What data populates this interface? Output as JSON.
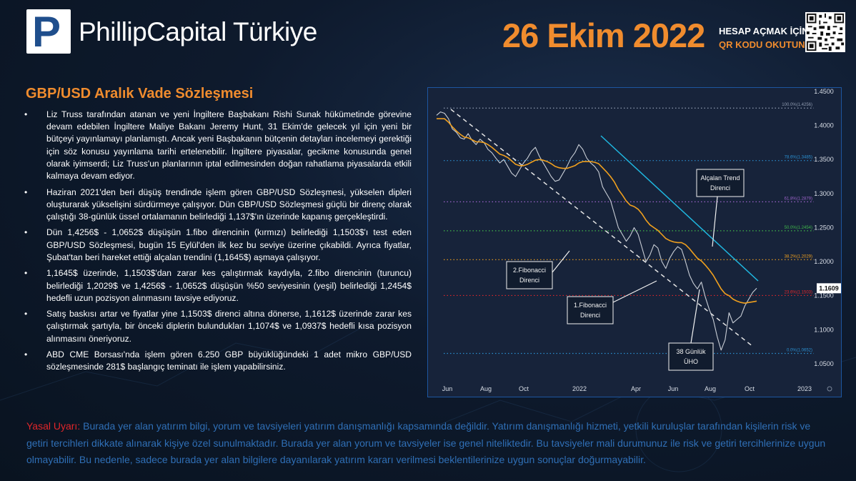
{
  "header": {
    "logo_letter": "P",
    "brand": "PhillipCapital Türkiye",
    "date": "26 Ekim 2022",
    "qr_line1": "HESAP AÇMAK İÇİN",
    "qr_line2": "QR KODU OKUTUNUZ"
  },
  "content": {
    "title": "GBP/USD Aralık Vade Sözleşmesi",
    "bullets": [
      "Liz Truss tarafından atanan ve yeni İngiltere Başbakanı Rishi Sunak hükümetinde görevine devam edebilen İngiltere Maliye Bakanı Jeremy Hunt, 31 Ekim'de gelecek yıl için yeni bir bütçeyi yayınlamayı planlamıştı. Ancak yeni Başbakanın bütçenin detayları incelemeyi gerektiği için söz konusu yayınlama tarihi ertelenebilir. İngiltere piyasalar, gecikme konusunda genel olarak iyimserdi; Liz Truss'un planlarının iptal edilmesinden doğan rahatlama piyasalarda etkili kalmaya devam ediyor.",
      "Haziran 2021'den beri düşüş trendinde işlem gören GBP/USD Sözleşmesi, yükselen dipleri oluşturarak yükselişini sürdürmeye çalışıyor. Dün GBP/USD Sözleşmesi güçlü bir direnç olarak çalıştığı 38-günlük üssel ortalamanın belirlediği 1,137$'ın üzerinde kapanış gerçekleştirdi.",
      "Dün 1,4256$ - 1,0652$ düşüşün 1.fibo direncinin (kırmızı) belirlediği 1,1503$'ı test eden GBP/USD Sözleşmesi,  bugün 15 Eylül'den ilk kez bu seviye üzerine çıkabildi. Ayrıca fiyatlar, Şubat'tan beri hareket ettiği alçalan trendini (1,1645$) aşmaya çalışıyor.",
      "1,1645$ üzerinde, 1,1503$'dan zarar kes çalıştırmak kaydıyla, 2.fibo direncinin (turuncu) belirlediği 1,2029$ ve 1,4256$ - 1,0652$ düşüşün %50 seviyesinin (yeşil) belirlediği 1,2454$  hedefli uzun pozisyon alınmasını tavsiye ediyoruz.",
      "Satış baskısı artar ve fiyatlar yine 1,1503$ direnci altına dönerse, 1,1612$ üzerinde zarar kes çalıştırmak şartıyla,  bir önceki diplerin bulundukları 1,1074$ ve 1,0937$ hedefli kısa pozisyon alınmasını öneriyoruz.",
      "ABD CME Borsası'nda işlem gören 6.250 GBP büyüklüğündeki 1 adet mikro GBP/USD sözleşmesinde 281$ başlangıç teminatı ile işlem yapabilirsiniz."
    ]
  },
  "chart_data": {
    "type": "line",
    "title": "",
    "xlabel": "",
    "ylabel": "",
    "ylim": [
      1.03,
      1.45
    ],
    "x_ticks": [
      "Jun",
      "Aug",
      "Oct",
      "2022",
      "Apr",
      "Jun",
      "Aug",
      "Oct",
      "2023"
    ],
    "y_ticks": [
      "1.4500",
      "1.4000",
      "1.3500",
      "1.3000",
      "1.2500",
      "1.2000",
      "1.1500",
      "1.1000",
      "1.0500"
    ],
    "y_tick_values": [
      1.45,
      1.4,
      1.35,
      1.3,
      1.25,
      1.2,
      1.15,
      1.1,
      1.05
    ],
    "last_price": "1.1609",
    "last_price_value": 1.1609,
    "series": [
      {
        "values": [
          1.415,
          1.42,
          1.418,
          1.41,
          1.395,
          1.39,
          1.382,
          1.38,
          1.388,
          1.378,
          1.372,
          1.38,
          1.375,
          1.365,
          1.36,
          1.352,
          1.345,
          1.35,
          1.34,
          1.33,
          1.325,
          1.335,
          1.345,
          1.352,
          1.362,
          1.368,
          1.355,
          1.345,
          1.335,
          1.325,
          1.318,
          1.32,
          1.33,
          1.34,
          1.352,
          1.36,
          1.372,
          1.365,
          1.352,
          1.345,
          1.34,
          1.332,
          1.31,
          1.3,
          1.29,
          1.27,
          1.25,
          1.24,
          1.23,
          1.238,
          1.25,
          1.24,
          1.22,
          1.2,
          1.21,
          1.225,
          1.22,
          1.2,
          1.19,
          1.205,
          1.215,
          1.222,
          1.218,
          1.2,
          1.18,
          1.168,
          1.16,
          1.17,
          1.148,
          1.13,
          1.115,
          1.09,
          1.07,
          1.085,
          1.125,
          1.11,
          1.115,
          1.12,
          1.135,
          1.145,
          1.155,
          1.1609
        ],
        "color": "#c9ced6"
      },
      {
        "name": "38 Günlük ÜHO",
        "values": [
          1.41,
          1.41,
          1.41,
          1.405,
          1.398,
          1.392,
          1.387,
          1.383,
          1.382,
          1.379,
          1.376,
          1.376,
          1.375,
          1.372,
          1.368,
          1.363,
          1.358,
          1.356,
          1.353,
          1.348,
          1.343,
          1.341,
          1.341,
          1.343,
          1.346,
          1.349,
          1.35,
          1.349,
          1.347,
          1.344,
          1.34,
          1.338,
          1.337,
          1.337,
          1.339,
          1.341,
          1.345,
          1.347,
          1.347,
          1.347,
          1.346,
          1.344,
          1.338,
          1.332,
          1.325,
          1.317,
          1.306,
          1.298,
          1.289,
          1.283,
          1.281,
          1.277,
          1.27,
          1.261,
          1.254,
          1.25,
          1.246,
          1.24,
          1.234,
          1.231,
          1.229,
          1.228,
          1.228,
          1.225,
          1.219,
          1.212,
          1.205,
          1.201,
          1.195,
          1.188,
          1.18,
          1.17,
          1.16,
          1.153,
          1.15,
          1.145,
          1.142,
          1.14,
          1.139,
          1.14,
          1.141,
          1.142
        ],
        "color": "#f0a01e"
      }
    ],
    "fibo_levels": [
      {
        "label": "100.0%(1.4256)",
        "value": 1.4256,
        "color": "#8f9bb0"
      },
      {
        "label": "78.6%(1.3485)",
        "value": 1.3485,
        "color": "#2a8fd0"
      },
      {
        "label": "61.8%(1.2879)",
        "value": 1.2879,
        "color": "#9a62c8"
      },
      {
        "label": "50.0%(1.2454)",
        "value": 1.2454,
        "color": "#3fb64a"
      },
      {
        "label": "38.2%(1.2029)",
        "value": 1.2029,
        "color": "#f0a01e"
      },
      {
        "label": "23.6%(1.1503)",
        "value": 1.1503,
        "color": "#e0262a"
      },
      {
        "label": "0.0%(1.0652)",
        "value": 1.0652,
        "color": "#2a8fd0"
      }
    ],
    "annotations": [
      {
        "id": "trend",
        "line1": "Alçalan Trend",
        "line2": "Direnci"
      },
      {
        "id": "fibo2",
        "line1": "2.Fibonacci",
        "line2": "Direnci"
      },
      {
        "id": "fibo1",
        "line1": "1.Fibonacci",
        "line2": "Direnci"
      },
      {
        "id": "ema",
        "line1": "38 Günlük",
        "line2": "ÜHO"
      }
    ],
    "grid": false,
    "legend": "none",
    "colors": {
      "trend": "#1fb7e0",
      "dashed_channel": "#e6e6e6",
      "price_tag": "#ffffff"
    }
  },
  "disclaimer": {
    "label": "Yasal Uyarı:",
    "text": " Burada yer alan yatırım bilgi, yorum ve tavsiyeleri yatırım danışmanlığı kapsamında değildir. Yatırım danışmanlığı hizmeti, yetkili kuruluşlar tarafından kişilerin risk ve getiri tercihleri dikkate alınarak kişiye özel sunulmaktadır. Burada yer alan yorum ve tavsiyeler ise genel niteliktedir. Bu tavsiyeler mali durumunuz ile risk ve getiri tercihlerinize uygun olmayabilir. Bu nedenle, sadece burada yer alan bilgilere dayanılarak yatırım kararı verilmesi beklentilerinize uygun sonuçlar doğurmayabilir."
  }
}
